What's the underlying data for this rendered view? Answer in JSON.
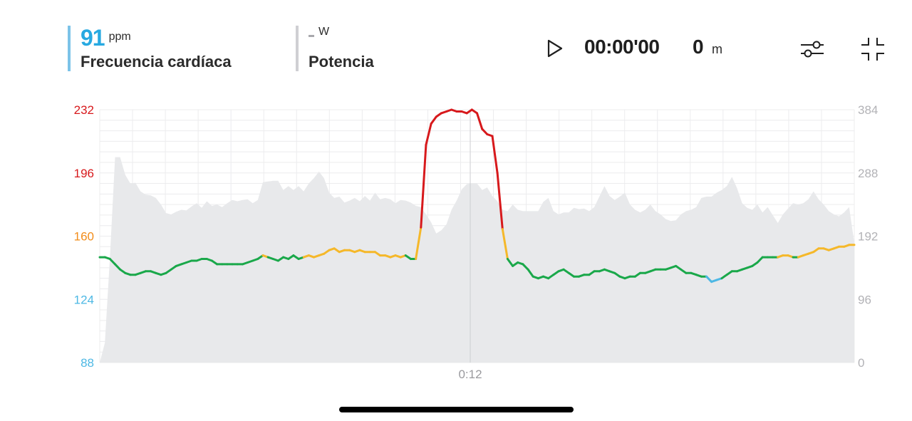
{
  "hr_metric": {
    "value": "91",
    "unit": "ppm",
    "label": "Frecuencia cardíaca"
  },
  "power_metric": {
    "unit": "W",
    "label": "Potencia"
  },
  "playback": {
    "time": "00:00'00",
    "distance": "0",
    "distance_unit": "m"
  },
  "icons": {
    "play": "play-icon",
    "settings": "sliders-icon",
    "collapse": "collapse-icon"
  },
  "colors": {
    "zone1": "#4db8e4",
    "zone2": "#1aa84a",
    "zone3": "#f5b82a",
    "zone4": "#f28c1a",
    "zone5": "#d7191c",
    "power_area": "#e8e9eb",
    "power_axis": "#b2b2b6"
  },
  "chart_data": {
    "type": "line",
    "x_ticks": [
      "0:12"
    ],
    "y_left": {
      "range": [
        88,
        232
      ],
      "ticks": [
        {
          "label": "232",
          "value": 232,
          "color": "#d7191c"
        },
        {
          "label": "196",
          "value": 196,
          "color": "#d7191c"
        },
        {
          "label": "160",
          "value": 160,
          "color": "#f28c1a"
        },
        {
          "label": "124",
          "value": 124,
          "color": "#4db8e4"
        },
        {
          "label": "88",
          "value": 88,
          "color": "#4db8e4"
        }
      ]
    },
    "y_right": {
      "range": [
        0,
        384
      ],
      "ticks": [
        {
          "label": "384",
          "value": 384
        },
        {
          "label": "288",
          "value": 288
        },
        {
          "label": "192",
          "value": 192
        },
        {
          "label": "96",
          "value": 96
        },
        {
          "label": "0",
          "value": 0
        }
      ]
    },
    "grid": true,
    "zones": [
      {
        "max": 136,
        "color": "#4db8e4"
      },
      {
        "max": 148,
        "color": "#1aa84a"
      },
      {
        "max": 159,
        "color": "#f5b82a"
      },
      {
        "max": 163,
        "color": "#f28c1a"
      },
      {
        "max": 999,
        "color": "#d7191c"
      }
    ],
    "series": [
      {
        "axis": "left",
        "points": [
          [
            0,
            148
          ],
          [
            1,
            148
          ],
          [
            2,
            147
          ],
          [
            3,
            144
          ],
          [
            4,
            141
          ],
          [
            5,
            139
          ],
          [
            6,
            138
          ],
          [
            7,
            138
          ],
          [
            8,
            139
          ],
          [
            9,
            140
          ],
          [
            10,
            140
          ],
          [
            11,
            139
          ],
          [
            12,
            138
          ],
          [
            13,
            139
          ],
          [
            14,
            141
          ],
          [
            15,
            143
          ],
          [
            16,
            144
          ],
          [
            17,
            145
          ],
          [
            18,
            146
          ],
          [
            19,
            146
          ],
          [
            20,
            147
          ],
          [
            21,
            147
          ],
          [
            22,
            146
          ],
          [
            23,
            144
          ],
          [
            24,
            144
          ],
          [
            25,
            144
          ],
          [
            26,
            144
          ],
          [
            27,
            144
          ],
          [
            28,
            144
          ],
          [
            29,
            145
          ],
          [
            30,
            146
          ],
          [
            31,
            147
          ],
          [
            32,
            149
          ],
          [
            33,
            148
          ],
          [
            34,
            147
          ],
          [
            35,
            146
          ],
          [
            36,
            148
          ],
          [
            37,
            147
          ],
          [
            38,
            149
          ],
          [
            39,
            147
          ],
          [
            40,
            148
          ],
          [
            41,
            149
          ],
          [
            42,
            148
          ],
          [
            43,
            149
          ],
          [
            44,
            150
          ],
          [
            45,
            152
          ],
          [
            46,
            153
          ],
          [
            47,
            151
          ],
          [
            48,
            152
          ],
          [
            49,
            152
          ],
          [
            50,
            151
          ],
          [
            51,
            152
          ],
          [
            52,
            151
          ],
          [
            53,
            151
          ],
          [
            54,
            151
          ],
          [
            55,
            149
          ],
          [
            56,
            149
          ],
          [
            57,
            148
          ],
          [
            58,
            149
          ],
          [
            59,
            148
          ],
          [
            60,
            149
          ],
          [
            61,
            147
          ],
          [
            62,
            147
          ],
          [
            63,
            165
          ],
          [
            64,
            212
          ],
          [
            65,
            224
          ],
          [
            66,
            228
          ],
          [
            67,
            230
          ],
          [
            68,
            231
          ],
          [
            69,
            232
          ],
          [
            70,
            231
          ],
          [
            71,
            231
          ],
          [
            72,
            230
          ],
          [
            73,
            232
          ],
          [
            74,
            230
          ],
          [
            75,
            221
          ],
          [
            76,
            218
          ],
          [
            77,
            217
          ],
          [
            78,
            196
          ],
          [
            79,
            164
          ],
          [
            80,
            147
          ],
          [
            81,
            143
          ],
          [
            82,
            145
          ],
          [
            83,
            144
          ],
          [
            84,
            141
          ],
          [
            85,
            137
          ],
          [
            86,
            136
          ],
          [
            87,
            137
          ],
          [
            88,
            136
          ],
          [
            89,
            138
          ],
          [
            90,
            140
          ],
          [
            91,
            141
          ],
          [
            92,
            139
          ],
          [
            93,
            137
          ],
          [
            94,
            137
          ],
          [
            95,
            138
          ],
          [
            96,
            138
          ],
          [
            97,
            140
          ],
          [
            98,
            140
          ],
          [
            99,
            141
          ],
          [
            100,
            140
          ],
          [
            101,
            139
          ],
          [
            102,
            137
          ],
          [
            103,
            136
          ],
          [
            104,
            137
          ],
          [
            105,
            137
          ],
          [
            106,
            139
          ],
          [
            107,
            139
          ],
          [
            108,
            140
          ],
          [
            109,
            141
          ],
          [
            110,
            141
          ],
          [
            111,
            141
          ],
          [
            112,
            142
          ],
          [
            113,
            143
          ],
          [
            114,
            141
          ],
          [
            115,
            139
          ],
          [
            116,
            139
          ],
          [
            117,
            138
          ],
          [
            118,
            137
          ],
          [
            119,
            137
          ],
          [
            120,
            134
          ],
          [
            121,
            135
          ],
          [
            122,
            136
          ],
          [
            123,
            138
          ],
          [
            124,
            140
          ],
          [
            125,
            140
          ],
          [
            126,
            141
          ],
          [
            127,
            142
          ],
          [
            128,
            143
          ],
          [
            129,
            145
          ],
          [
            130,
            148
          ],
          [
            131,
            148
          ],
          [
            132,
            148
          ],
          [
            133,
            148
          ],
          [
            134,
            149
          ],
          [
            135,
            149
          ],
          [
            136,
            148
          ],
          [
            137,
            148
          ],
          [
            138,
            149
          ],
          [
            139,
            150
          ],
          [
            140,
            151
          ],
          [
            141,
            153
          ],
          [
            142,
            153
          ],
          [
            143,
            152
          ],
          [
            144,
            153
          ],
          [
            145,
            154
          ],
          [
            146,
            154
          ],
          [
            147,
            155
          ],
          [
            148,
            155
          ]
        ]
      },
      {
        "axis": "right",
        "type": "area",
        "points": [
          [
            0,
            0
          ],
          [
            1,
            30
          ],
          [
            2,
            160
          ],
          [
            3,
            312
          ],
          [
            4,
            312
          ],
          [
            5,
            285
          ],
          [
            6,
            272
          ],
          [
            7,
            273
          ],
          [
            8,
            260
          ],
          [
            9,
            255
          ],
          [
            10,
            254
          ],
          [
            11,
            250
          ],
          [
            12,
            240
          ],
          [
            13,
            227
          ],
          [
            14,
            225
          ],
          [
            15,
            229
          ],
          [
            16,
            232
          ],
          [
            17,
            231
          ],
          [
            18,
            237
          ],
          [
            19,
            242
          ],
          [
            20,
            235
          ],
          [
            21,
            245
          ],
          [
            22,
            238
          ],
          [
            23,
            240
          ],
          [
            24,
            236
          ],
          [
            25,
            242
          ],
          [
            26,
            247
          ],
          [
            27,
            245
          ],
          [
            28,
            247
          ],
          [
            29,
            248
          ],
          [
            30,
            242
          ],
          [
            31,
            247
          ],
          [
            32,
            274
          ],
          [
            33,
            275
          ],
          [
            34,
            276
          ],
          [
            35,
            276
          ],
          [
            36,
            262
          ],
          [
            37,
            268
          ],
          [
            38,
            262
          ],
          [
            39,
            268
          ],
          [
            40,
            260
          ],
          [
            41,
            272
          ],
          [
            42,
            280
          ],
          [
            43,
            290
          ],
          [
            44,
            280
          ],
          [
            45,
            258
          ],
          [
            46,
            250
          ],
          [
            47,
            252
          ],
          [
            48,
            243
          ],
          [
            49,
            246
          ],
          [
            50,
            250
          ],
          [
            51,
            245
          ],
          [
            52,
            253
          ],
          [
            53,
            246
          ],
          [
            54,
            258
          ],
          [
            55,
            248
          ],
          [
            56,
            250
          ],
          [
            57,
            248
          ],
          [
            58,
            242
          ],
          [
            59,
            247
          ],
          [
            60,
            246
          ],
          [
            61,
            243
          ],
          [
            62,
            238
          ],
          [
            63,
            236
          ],
          [
            64,
            225
          ],
          [
            65,
            213
          ],
          [
            66,
            196
          ],
          [
            67,
            201
          ],
          [
            68,
            210
          ],
          [
            69,
            232
          ],
          [
            70,
            246
          ],
          [
            71,
            263
          ],
          [
            72,
            271
          ],
          [
            73,
            272
          ],
          [
            74,
            272
          ],
          [
            75,
            262
          ],
          [
            76,
            266
          ],
          [
            77,
            253
          ],
          [
            78,
            245
          ],
          [
            79,
            232
          ],
          [
            80,
            230
          ],
          [
            81,
            240
          ],
          [
            82,
            232
          ],
          [
            83,
            230
          ],
          [
            84,
            230
          ],
          [
            85,
            230
          ],
          [
            86,
            230
          ],
          [
            87,
            244
          ],
          [
            88,
            250
          ],
          [
            89,
            230
          ],
          [
            90,
            225
          ],
          [
            91,
            228
          ],
          [
            92,
            228
          ],
          [
            93,
            235
          ],
          [
            94,
            233
          ],
          [
            95,
            234
          ],
          [
            96,
            230
          ],
          [
            97,
            236
          ],
          [
            98,
            252
          ],
          [
            99,
            268
          ],
          [
            100,
            253
          ],
          [
            101,
            247
          ],
          [
            102,
            252
          ],
          [
            103,
            258
          ],
          [
            104,
            240
          ],
          [
            105,
            232
          ],
          [
            106,
            228
          ],
          [
            107,
            232
          ],
          [
            108,
            240
          ],
          [
            109,
            230
          ],
          [
            110,
            225
          ],
          [
            111,
            218
          ],
          [
            112,
            215
          ],
          [
            113,
            216
          ],
          [
            114,
            225
          ],
          [
            115,
            230
          ],
          [
            116,
            232
          ],
          [
            117,
            236
          ],
          [
            118,
            250
          ],
          [
            119,
            252
          ],
          [
            120,
            252
          ],
          [
            121,
            258
          ],
          [
            122,
            262
          ],
          [
            123,
            268
          ],
          [
            124,
            282
          ],
          [
            125,
            265
          ],
          [
            126,
            242
          ],
          [
            127,
            235
          ],
          [
            128,
            232
          ],
          [
            129,
            240
          ],
          [
            130,
            228
          ],
          [
            131,
            236
          ],
          [
            132,
            224
          ],
          [
            133,
            212
          ],
          [
            134,
            225
          ],
          [
            135,
            234
          ],
          [
            136,
            242
          ],
          [
            137,
            240
          ],
          [
            138,
            242
          ],
          [
            139,
            248
          ],
          [
            140,
            260
          ],
          [
            141,
            248
          ],
          [
            142,
            240
          ],
          [
            143,
            230
          ],
          [
            144,
            225
          ],
          [
            145,
            222
          ],
          [
            146,
            228
          ],
          [
            147,
            236
          ],
          [
            148,
            182
          ]
        ]
      }
    ]
  }
}
